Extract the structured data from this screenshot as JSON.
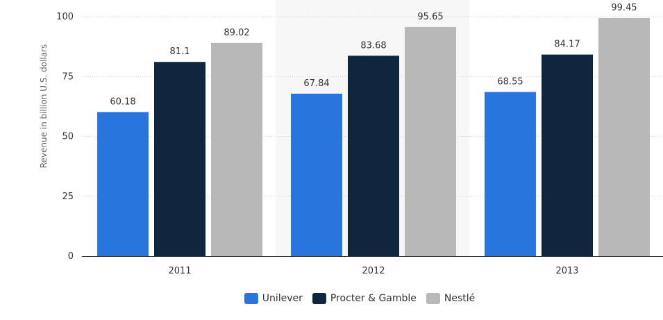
{
  "chart_data": {
    "type": "bar",
    "categories": [
      "2011",
      "2012",
      "2013"
    ],
    "series": [
      {
        "name": "Unilever",
        "values": [
          60.18,
          67.84,
          68.55
        ],
        "color": "#2876dd"
      },
      {
        "name": "Procter & Gamble",
        "values": [
          81.1,
          83.68,
          84.17
        ],
        "color": "#10263e"
      },
      {
        "name": "Nestlé",
        "values": [
          89.02,
          95.65,
          99.45
        ],
        "color": "#b8b8b8"
      }
    ],
    "value_labels": [
      [
        "60.18",
        "67.84",
        "68.55"
      ],
      [
        "81.1",
        "83.68",
        "84.17"
      ],
      [
        "89.02",
        "95.65",
        "99.45"
      ]
    ],
    "title": "",
    "xlabel": "",
    "ylabel": "Revenue in billion U.S. dollars",
    "ylim": [
      0,
      100
    ],
    "yticks": [
      0,
      25,
      50,
      75,
      100
    ],
    "highlighted_category": "2012",
    "grid": true,
    "legend_position": "bottom"
  }
}
